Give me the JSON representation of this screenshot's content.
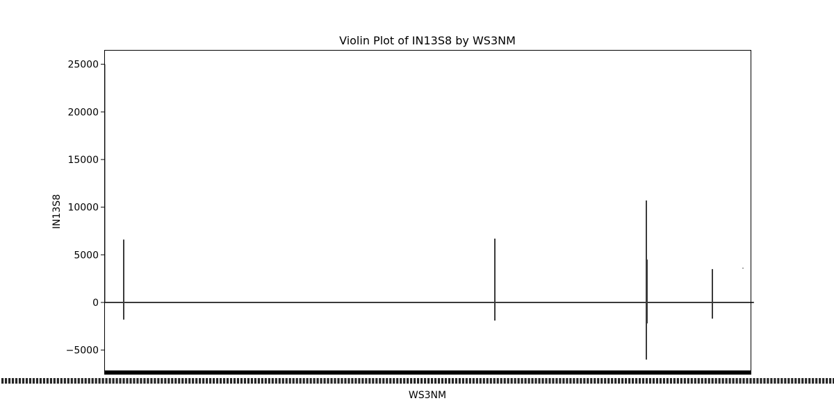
{
  "chart_data": {
    "type": "violin",
    "title": "Violin Plot of IN13S8 by WS3NM",
    "xlabel": "WS3NM",
    "ylabel": "IN13S8",
    "ylim": [
      -7500,
      26500
    ],
    "yticks": [
      -5000,
      0,
      5000,
      10000,
      15000,
      20000,
      25000
    ],
    "yticklabels": [
      "−5000",
      "0",
      "5000",
      "10000",
      "15000",
      "20000",
      "25000"
    ],
    "x_tick_labels_note": "dense overlapping category tick labels, unreadable",
    "grid": false,
    "color": "#3a3a3a",
    "category_count": 54,
    "default_violin": {
      "min": -50,
      "max": 50
    },
    "visible_violins": [
      {
        "index": 0,
        "min": -1800,
        "max": 6600
      },
      {
        "index": 40,
        "min": -1900,
        "max": 6700
      },
      {
        "index": 56,
        "min": -6000,
        "max": 10700
      },
      {
        "index": 56.1,
        "min": -2200,
        "max": 4500
      },
      {
        "index": 63,
        "min": -1700,
        "max": 3500
      },
      {
        "index": 66,
        "min": 3580,
        "max": 3640
      }
    ],
    "spike_at_left_edge": {
      "min": -50,
      "max": 25000
    }
  }
}
